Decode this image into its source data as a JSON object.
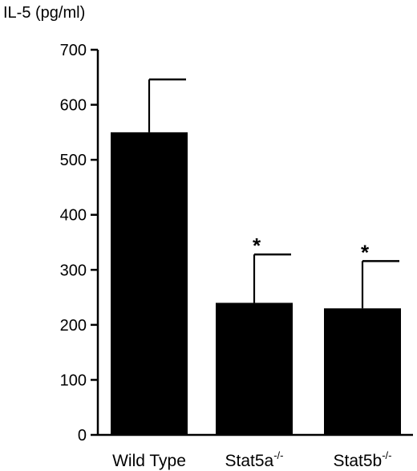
{
  "chart_data": {
    "type": "bar",
    "title": "",
    "ylabel": "IL-5 (pg/ml)",
    "xlabel": "",
    "ylim": [
      0,
      700
    ],
    "yticks": [
      "0",
      "100",
      "200",
      "300",
      "400",
      "500",
      "600",
      "700"
    ],
    "grid": false,
    "categories": [
      {
        "base": "Wild Type",
        "sup": ""
      },
      {
        "base": "Stat5a",
        "sup": "-/-"
      },
      {
        "base": "Stat5b",
        "sup": "-/-"
      }
    ],
    "values": [
      550,
      240,
      230
    ],
    "error_upper": [
      96,
      88,
      86
    ],
    "annotations": [
      "",
      "*",
      "*"
    ],
    "bar_color": "#000000"
  }
}
